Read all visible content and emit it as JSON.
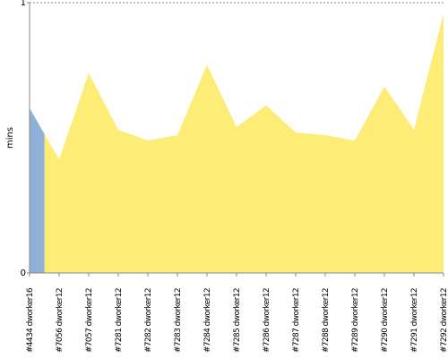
{
  "chart_data": {
    "type": "area",
    "ylabel": "mins",
    "categories": [
      "#4434 dworker16",
      "#7056 dworker12",
      "#7057 dworker12",
      "#7281 dworker12",
      "#7282 dworker12",
      "#7283 dworker12",
      "#7284 dworker12",
      "#7285 dworker12",
      "#7286 dworker12",
      "#7287 dworker12",
      "#7288 dworker12",
      "#7289 dworker12",
      "#7290 dworker12",
      "#7291 dworker12",
      "#7292 dworker12"
    ],
    "values": [
      0.61,
      0.42,
      0.74,
      0.53,
      0.49,
      0.51,
      0.77,
      0.54,
      0.62,
      0.52,
      0.51,
      0.49,
      0.69,
      0.53,
      0.96
    ],
    "colors": [
      "#8fb0d8",
      "#fded77",
      "#fded77",
      "#fded77",
      "#fded77",
      "#fded77",
      "#fded77",
      "#fded77",
      "#fded77",
      "#fded77",
      "#fded77",
      "#fded77",
      "#fded77",
      "#fded77",
      "#fded77"
    ],
    "ylim": [
      0,
      1
    ],
    "yticks": [
      0,
      1
    ],
    "grid": true
  }
}
